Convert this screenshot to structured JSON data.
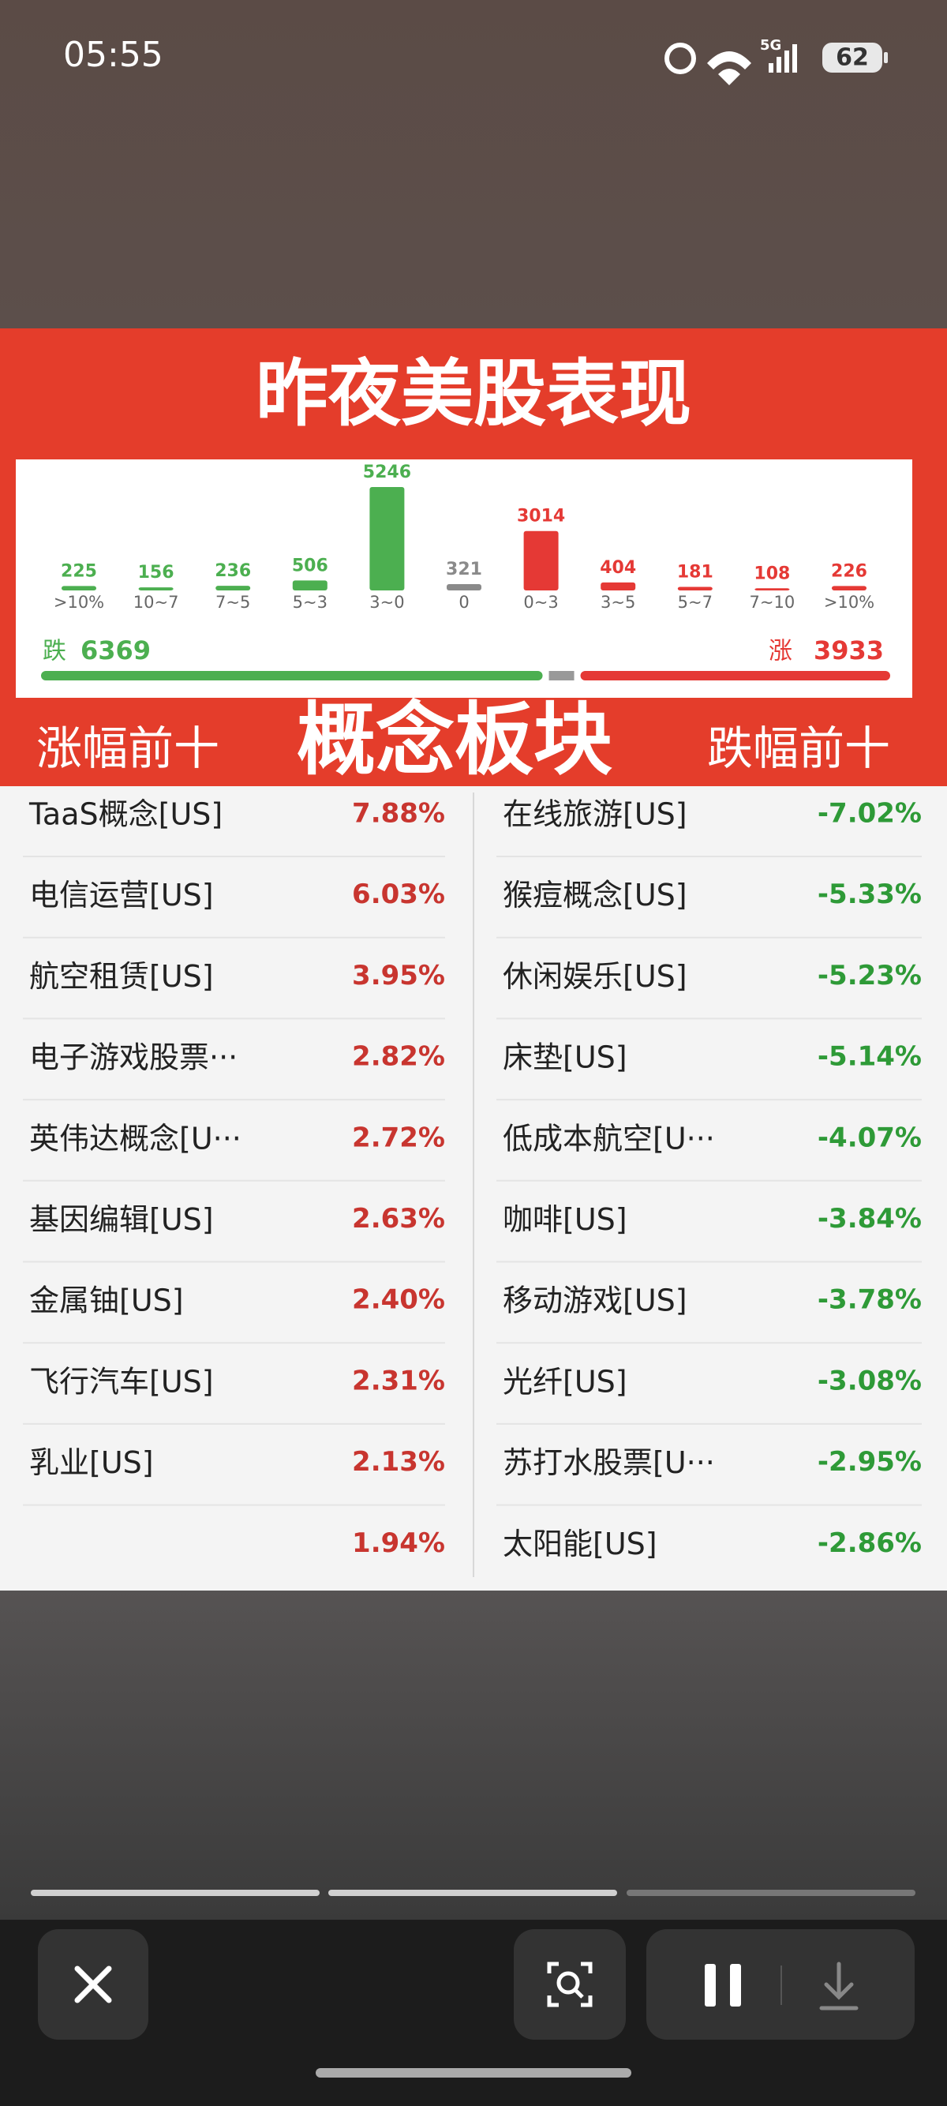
{
  "status_bar": {
    "time": "05:55",
    "signal": "5G",
    "battery": "62"
  },
  "title": "昨夜美股表现",
  "distribution": {
    "type": "bar",
    "categories": [
      ">10%",
      "10~7",
      "7~5",
      "5~3",
      "3~0",
      "0",
      "0~3",
      "3~5",
      "5~7",
      "7~10",
      ">10%"
    ],
    "values": [
      225,
      156,
      236,
      506,
      5246,
      321,
      3014,
      404,
      181,
      108,
      226
    ],
    "colors": [
      "#4caf50",
      "#4caf50",
      "#4caf50",
      "#4caf50",
      "#4caf50",
      "#8a8a8a",
      "#e53935",
      "#e53935",
      "#e53935",
      "#e53935",
      "#e53935"
    ]
  },
  "totals": {
    "down": {
      "label": "跌",
      "value": 6369,
      "color": "#4caf50"
    },
    "up": {
      "label": "涨",
      "value": 3933,
      "color": "#e53935"
    }
  },
  "sections": {
    "gainers_heading": "涨幅前十",
    "center_heading": "概念板块",
    "losers_heading": "跌幅前十"
  },
  "gainers": [
    {
      "name": "TaaS概念[US]",
      "change": "7.88%"
    },
    {
      "name": "电信运营[US]",
      "change": "6.03%"
    },
    {
      "name": "航空租赁[US]",
      "change": "3.95%"
    },
    {
      "name": "电子游戏股票···",
      "change": "2.82%"
    },
    {
      "name": "英伟达概念[U···",
      "change": "2.72%"
    },
    {
      "name": "基因编辑[US]",
      "change": "2.63%"
    },
    {
      "name": "金属铀[US]",
      "change": "2.40%"
    },
    {
      "name": "飞行汽车[US]",
      "change": "2.31%"
    },
    {
      "name": "乳业[US]",
      "change": "2.13%"
    },
    {
      "name": null,
      "change": "1.94%"
    }
  ],
  "losers": [
    {
      "name": "在线旅游[US]",
      "change": "-7.02%"
    },
    {
      "name": "猴痘概念[US]",
      "change": "-5.33%"
    },
    {
      "name": "休闲娱乐[US]",
      "change": "-5.23%"
    },
    {
      "name": "床垫[US]",
      "change": "-5.14%"
    },
    {
      "name": "低成本航空[U···",
      "change": "-4.07%"
    },
    {
      "name": "咖啡[US]",
      "change": "-3.84%"
    },
    {
      "name": "移动游戏[US]",
      "change": "-3.78%"
    },
    {
      "name": "光纤[US]",
      "change": "-3.08%"
    },
    {
      "name": "苏打水股票[U···",
      "change": "-2.95%"
    },
    {
      "name": "太阳能[US]",
      "change": "-2.86%"
    }
  ]
}
